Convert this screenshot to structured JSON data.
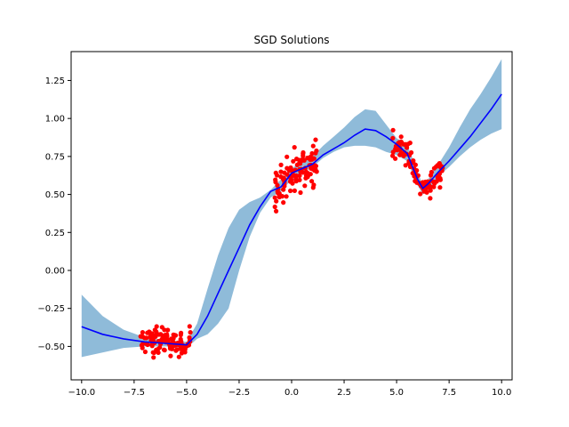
{
  "chart_data": {
    "type": "line",
    "title": "SGD Solutions",
    "xlabel": "",
    "ylabel": "",
    "xlim": [
      -10.5,
      10.5
    ],
    "ylim": [
      -0.72,
      1.44
    ],
    "xticks": [
      -10.0,
      -7.5,
      -5.0,
      -2.5,
      0.0,
      2.5,
      5.0,
      7.5,
      10.0
    ],
    "xtick_labels": [
      "−10.0",
      "−7.5",
      "−5.0",
      "−2.5",
      "0.0",
      "2.5",
      "5.0",
      "7.5",
      "10.0"
    ],
    "yticks": [
      -0.5,
      -0.25,
      0.0,
      0.25,
      0.5,
      0.75,
      1.0,
      1.25
    ],
    "ytick_labels": [
      "−0.50",
      "−0.25",
      "0.00",
      "0.25",
      "0.50",
      "0.75",
      "1.00",
      "1.25"
    ],
    "grid": false,
    "colors": {
      "mean": "#0000ff",
      "band": "#1f77b4",
      "points": "#ff0000"
    },
    "mean_line": {
      "x": [
        -10,
        -9,
        -8,
        -7,
        -6,
        -5,
        -4.5,
        -4,
        -3.5,
        -3,
        -2.5,
        -2,
        -1.5,
        -1,
        -0.5,
        0,
        0.5,
        1,
        1.5,
        2,
        2.5,
        3,
        3.5,
        4,
        4.5,
        5,
        5.5,
        6,
        6.25,
        6.5,
        7,
        7.5,
        8,
        8.5,
        9,
        9.5,
        10
      ],
      "y": [
        -0.37,
        -0.42,
        -0.45,
        -0.47,
        -0.48,
        -0.49,
        -0.42,
        -0.3,
        -0.15,
        0.0,
        0.15,
        0.3,
        0.42,
        0.52,
        0.55,
        0.64,
        0.67,
        0.7,
        0.76,
        0.8,
        0.84,
        0.89,
        0.93,
        0.92,
        0.88,
        0.83,
        0.77,
        0.6,
        0.54,
        0.57,
        0.65,
        0.72,
        0.8,
        0.88,
        0.97,
        1.06,
        1.16
      ]
    },
    "band": {
      "x": [
        -10,
        -9,
        -8,
        -7,
        -6,
        -5,
        -4.5,
        -4,
        -3.5,
        -3,
        -2.5,
        -2,
        -1.5,
        -1,
        -0.5,
        0,
        0.5,
        1,
        1.5,
        2,
        2.5,
        3,
        3.5,
        4,
        4.5,
        5,
        5.5,
        6,
        6.25,
        6.5,
        7,
        7.5,
        8,
        8.5,
        9,
        9.5,
        10
      ],
      "upper": [
        -0.16,
        -0.3,
        -0.39,
        -0.44,
        -0.46,
        -0.47,
        -0.35,
        -0.12,
        0.1,
        0.28,
        0.4,
        0.45,
        0.48,
        0.53,
        0.6,
        0.67,
        0.72,
        0.75,
        0.82,
        0.88,
        0.94,
        1.01,
        1.06,
        1.05,
        0.96,
        0.87,
        0.83,
        0.65,
        0.56,
        0.6,
        0.7,
        0.81,
        0.94,
        1.06,
        1.16,
        1.27,
        1.39
      ],
      "lower": [
        -0.57,
        -0.54,
        -0.51,
        -0.5,
        -0.5,
        -0.51,
        -0.45,
        -0.42,
        -0.35,
        -0.25,
        0.0,
        0.22,
        0.38,
        0.48,
        0.52,
        0.6,
        0.64,
        0.68,
        0.74,
        0.78,
        0.81,
        0.82,
        0.82,
        0.81,
        0.78,
        0.76,
        0.72,
        0.56,
        0.5,
        0.53,
        0.62,
        0.68,
        0.75,
        0.81,
        0.86,
        0.9,
        0.93
      ]
    },
    "scatter_clusters": [
      {
        "x_range": [
          -7.2,
          -4.8
        ],
        "y_center": -0.47,
        "spread": 0.045,
        "count": 110
      },
      {
        "x_range": [
          -0.8,
          1.2
        ],
        "curve": "mean",
        "spread": 0.07,
        "count": 110
      },
      {
        "x_range": [
          4.8,
          7.2
        ],
        "curve": "mean",
        "spread": 0.045,
        "count": 110
      }
    ]
  }
}
